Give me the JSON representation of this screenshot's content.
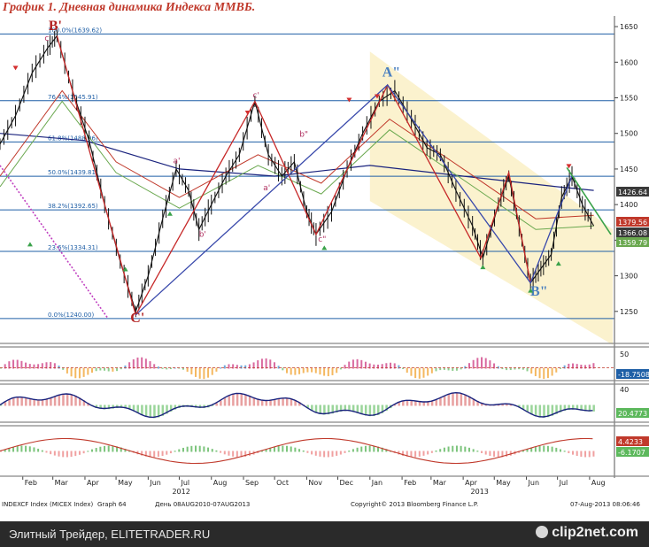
{
  "title": "График 1.   Дневная динамика Индекса ММВБ.",
  "chart_data": {
    "type": "line",
    "title": "График 1.   Дневная динамика Индекса ММВБ.",
    "instrument": "INDEXCF Index (MICEX Index)",
    "graph": "Graph 64",
    "period": "День 08AUG2010-07AUG2013",
    "copyright": "Copyright© 2013 Bloomberg Finance L.P.",
    "timestamp": "07-Aug-2013 08:06:46",
    "x_tick_labels": [
      "Feb",
      "Mar",
      "Apr",
      "May",
      "Jun",
      "Jul",
      "Aug",
      "Sep",
      "Oct",
      "Nov",
      "Dec",
      "Jan",
      "Feb",
      "Mar",
      "Apr",
      "May",
      "Jun",
      "Jul",
      "Aug"
    ],
    "year_labels": [
      "2012",
      "2013"
    ],
    "y_ticks": [
      1250,
      1300,
      1350,
      1400,
      1450,
      1500,
      1550,
      1600,
      1650
    ],
    "ylim": [
      1205,
      1665
    ],
    "price_series": [
      {
        "x": "2012-01-10",
        "y": 1485
      },
      {
        "x": "2012-01-25",
        "y": 1525
      },
      {
        "x": "2012-02-10",
        "y": 1585
      },
      {
        "x": "2012-02-25",
        "y": 1620
      },
      {
        "x": "2012-03-05",
        "y": 1637
      },
      {
        "x": "2012-03-20",
        "y": 1560
      },
      {
        "x": "2012-04-05",
        "y": 1490
      },
      {
        "x": "2012-04-20",
        "y": 1400
      },
      {
        "x": "2012-05-05",
        "y": 1320
      },
      {
        "x": "2012-05-20",
        "y": 1250
      },
      {
        "x": "2012-06-01",
        "y": 1300
      },
      {
        "x": "2012-06-15",
        "y": 1380
      },
      {
        "x": "2012-06-28",
        "y": 1450
      },
      {
        "x": "2012-07-10",
        "y": 1420
      },
      {
        "x": "2012-07-20",
        "y": 1365
      },
      {
        "x": "2012-08-01",
        "y": 1400
      },
      {
        "x": "2012-08-15",
        "y": 1440
      },
      {
        "x": "2012-08-28",
        "y": 1470
      },
      {
        "x": "2012-09-12",
        "y": 1545
      },
      {
        "x": "2012-09-25",
        "y": 1470
      },
      {
        "x": "2012-10-08",
        "y": 1440
      },
      {
        "x": "2012-10-20",
        "y": 1460
      },
      {
        "x": "2012-11-01",
        "y": 1390
      },
      {
        "x": "2012-11-10",
        "y": 1358
      },
      {
        "x": "2012-11-25",
        "y": 1390
      },
      {
        "x": "2012-12-10",
        "y": 1450
      },
      {
        "x": "2012-12-25",
        "y": 1500
      },
      {
        "x": "2013-01-10",
        "y": 1545
      },
      {
        "x": "2013-01-25",
        "y": 1560
      },
      {
        "x": "2013-02-10",
        "y": 1520
      },
      {
        "x": "2013-02-25",
        "y": 1480
      },
      {
        "x": "2013-03-10",
        "y": 1470
      },
      {
        "x": "2013-03-25",
        "y": 1420
      },
      {
        "x": "2013-04-10",
        "y": 1370
      },
      {
        "x": "2013-04-20",
        "y": 1325
      },
      {
        "x": "2013-05-05",
        "y": 1400
      },
      {
        "x": "2013-05-15",
        "y": 1440
      },
      {
        "x": "2013-05-25",
        "y": 1370
      },
      {
        "x": "2013-06-05",
        "y": 1290
      },
      {
        "x": "2013-06-15",
        "y": 1310
      },
      {
        "x": "2013-06-25",
        "y": 1330
      },
      {
        "x": "2013-07-05",
        "y": 1410
      },
      {
        "x": "2013-07-15",
        "y": 1440
      },
      {
        "x": "2013-07-25",
        "y": 1400
      },
      {
        "x": "2013-08-05",
        "y": 1370
      }
    ],
    "ma_long": [
      {
        "x": "2012-01-10",
        "y": 1500
      },
      {
        "x": "2012-04-01",
        "y": 1490
      },
      {
        "x": "2012-07-01",
        "y": 1450
      },
      {
        "x": "2012-10-01",
        "y": 1440
      },
      {
        "x": "2013-01-01",
        "y": 1455
      },
      {
        "x": "2013-04-01",
        "y": 1440
      },
      {
        "x": "2013-07-01",
        "y": 1425
      },
      {
        "x": "2013-08-05",
        "y": 1420
      }
    ],
    "ma_mid": [
      {
        "x": "2012-01-10",
        "y": 1440
      },
      {
        "x": "2012-03-10",
        "y": 1560
      },
      {
        "x": "2012-05-01",
        "y": 1460
      },
      {
        "x": "2012-07-01",
        "y": 1410
      },
      {
        "x": "2012-09-15",
        "y": 1470
      },
      {
        "x": "2012-11-15",
        "y": 1430
      },
      {
        "x": "2013-01-20",
        "y": 1520
      },
      {
        "x": "2013-04-01",
        "y": 1450
      },
      {
        "x": "2013-06-10",
        "y": 1380
      },
      {
        "x": "2013-08-05",
        "y": 1385
      }
    ],
    "fib_levels": [
      {
        "label": "100.0%(1639.62)",
        "value": 1639.62
      },
      {
        "label": "76.4%(1545.91)",
        "value": 1545.91
      },
      {
        "label": "61.8%(1488.06)",
        "value": 1488.06
      },
      {
        "label": "50.0%(1439.81)",
        "value": 1439.81
      },
      {
        "label": "38.2%(1392.65)",
        "value": 1392.65
      },
      {
        "label": "23.6%(1334.31)",
        "value": 1334.31
      },
      {
        "label": "0.0%(1240.00)",
        "value": 1240.0
      }
    ],
    "last_values": [
      {
        "label": "1426.64",
        "value": 1426.64,
        "color": "#3a3a3a"
      },
      {
        "label": "1379.56",
        "value": 1379.56,
        "color": "#c0392b"
      },
      {
        "label": "1366.08",
        "value": 1366.08,
        "color": "#3a3a3a"
      },
      {
        "label": "1359.79",
        "value": 1359.79,
        "color": "#6aa84f"
      }
    ],
    "wave_labels": [
      {
        "label": "B'",
        "x": "2012-03-02",
        "y": 1645
      },
      {
        "label": "C'",
        "x": "2012-05-20",
        "y": 1235
      },
      {
        "label": "A\"",
        "x": "2013-01-18",
        "y": 1580
      },
      {
        "label": "B\"",
        "x": "2013-06-10",
        "y": 1272
      }
    ],
    "small_labels": [
      {
        "label": "c",
        "x": "2012-02-22",
        "y": 1630
      },
      {
        "label": "a'",
        "x": "2012-06-25",
        "y": 1458
      },
      {
        "label": "b'",
        "x": "2012-07-20",
        "y": 1355
      },
      {
        "label": "c'",
        "x": "2012-09-10",
        "y": 1550
      },
      {
        "label": "a'",
        "x": "2012-09-20",
        "y": 1420
      },
      {
        "label": "b\"",
        "x": "2012-10-25",
        "y": 1495
      },
      {
        "label": "c\"",
        "x": "2012-11-12",
        "y": 1348
      }
    ],
    "indicators": [
      {
        "name": "osc1",
        "y_tick": "50",
        "last_label": "-18.7508",
        "last_color": "#1f5fa6"
      },
      {
        "name": "osc2",
        "y_tick": "40",
        "last_label": "20.4773",
        "last_color": "#5cb85c"
      },
      {
        "name": "osc3",
        "last_label": "4.4233",
        "last_color": "#c0392b",
        "second_label": "-6.1707",
        "second_color": "#5cb85c"
      }
    ],
    "colors": {
      "price": "#111111",
      "ma_long": "#1a237e",
      "ma_mid": "#c0392b",
      "ma_short": "#6aa84f",
      "channel": "#f7e7a6",
      "fib": "#1f5fa6",
      "wave_red": "#c62828",
      "wave_blue": "#3949ab",
      "green_line": "#3aa24a",
      "dotted": "#c040c0"
    }
  },
  "footer": {
    "left_text": "Элитный Трейдер, ELITETRADER.RU",
    "logo": "clip2net.com"
  }
}
